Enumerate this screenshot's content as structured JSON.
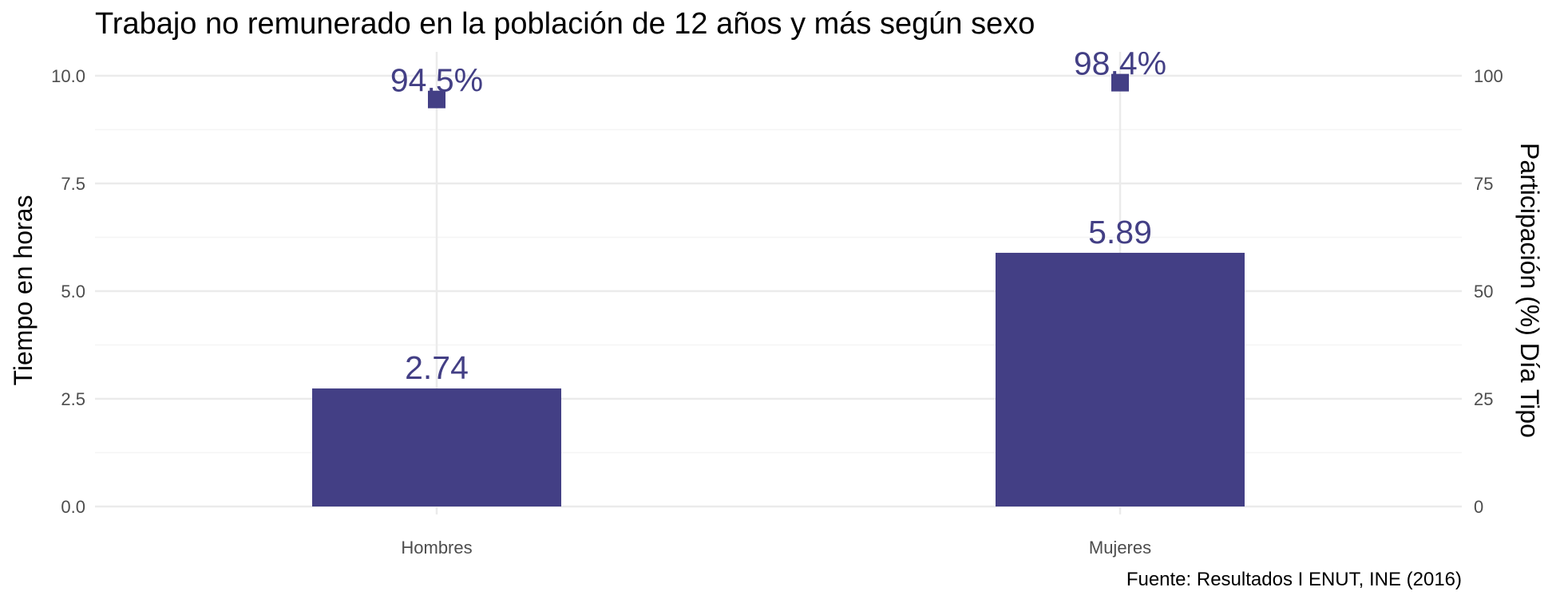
{
  "chart_data": {
    "type": "bar",
    "title": "Trabajo no remunerado en la población de 12 años y más según sexo",
    "caption": "Fuente: Resultados I ENUT, INE (2016)",
    "categories": [
      "Hombres",
      "Mujeres"
    ],
    "series": [
      {
        "type": "bar",
        "axis": "left",
        "values": [
          2.74,
          5.89
        ],
        "labels": [
          "2.74",
          "5.89"
        ]
      },
      {
        "type": "point",
        "marker": "square",
        "axis": "right",
        "values": [
          94.5,
          98.4
        ],
        "labels": [
          "94.5%",
          "98.4%"
        ]
      }
    ],
    "ylabel": "Tiempo en horas",
    "ylim": [
      0,
      10
    ],
    "yticks": [
      "0.0",
      "2.5",
      "5.0",
      "7.5",
      "10.0"
    ],
    "y2label": "Participación (%) Día Tipo",
    "y2lim": [
      0,
      100
    ],
    "y2ticks": [
      "0",
      "25",
      "50",
      "75",
      "100"
    ],
    "grid": true,
    "legend": "none",
    "colors": {
      "bar": "#433F85",
      "point": "#433F85",
      "label": "#433F85",
      "grid_major": "#EBEBEB",
      "grid_minor": "#F5F5F5"
    }
  }
}
